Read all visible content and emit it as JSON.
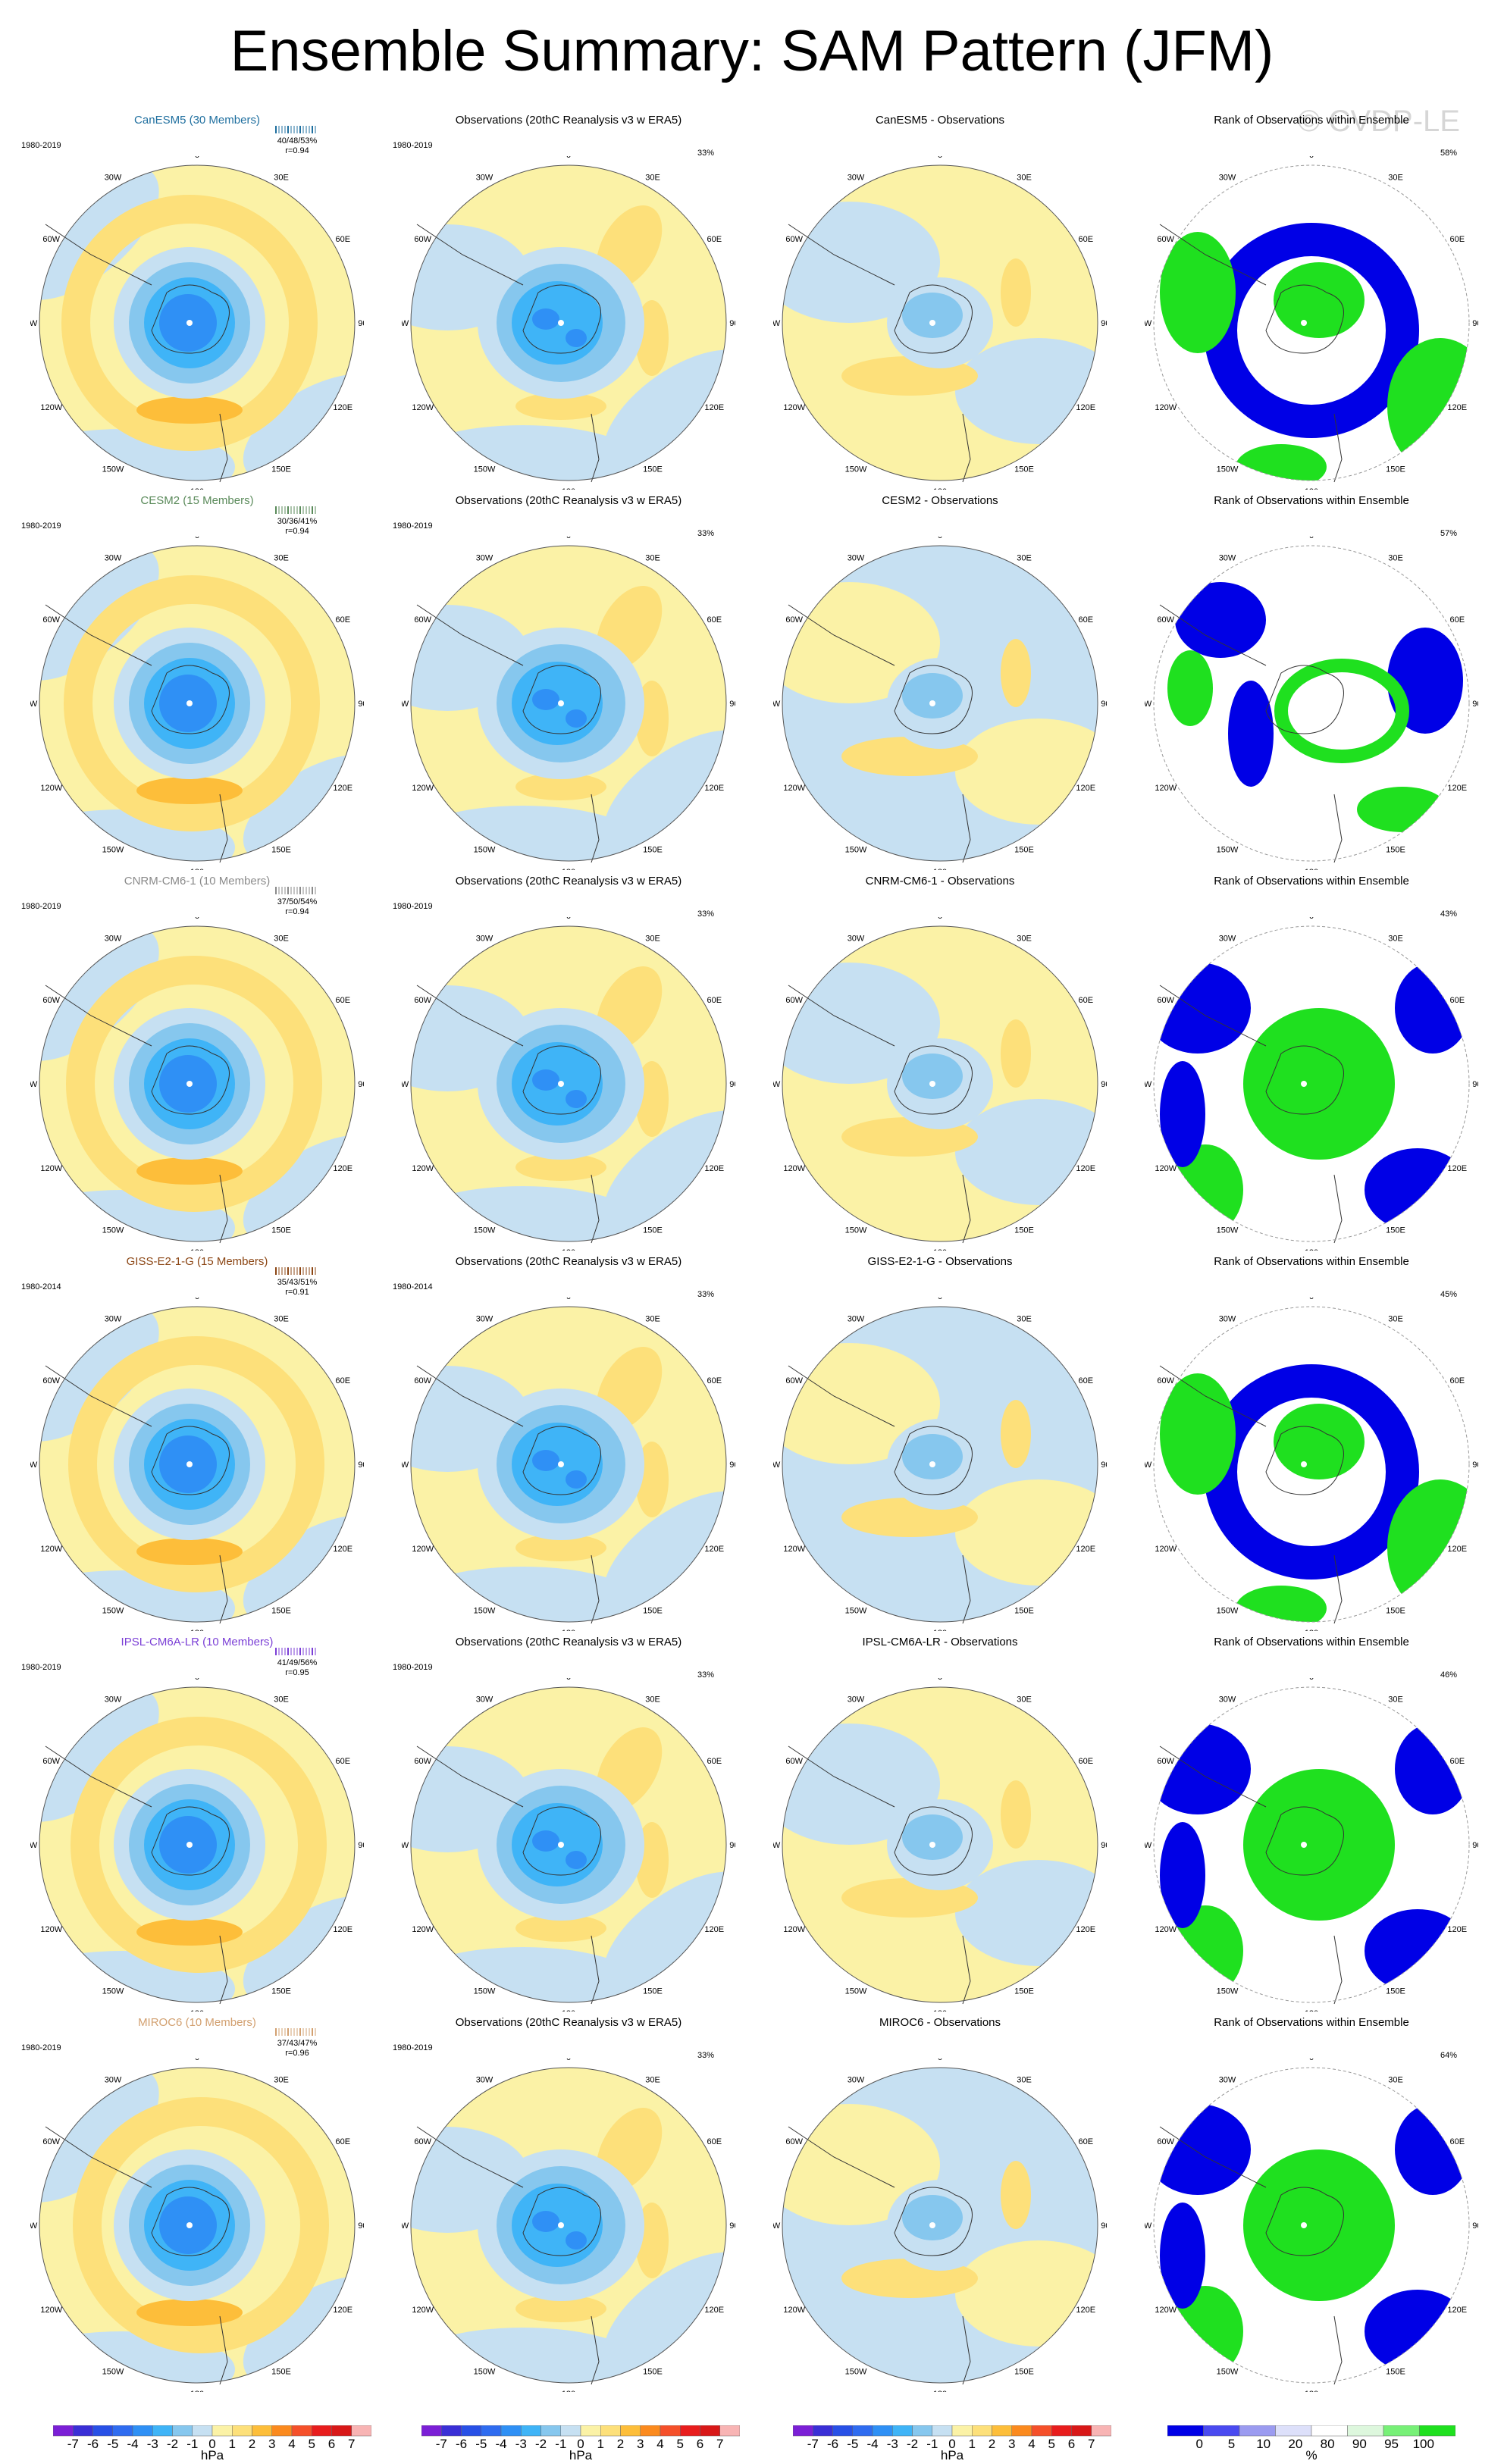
{
  "title": "Ensemble Summary: SAM Pattern (JFM)",
  "watermark": "© CVDP-LE",
  "obs_title": "Observations (20thC Reanalysis v3 w ERA5)",
  "rank_title": "Rank of Observations within Ensemble",
  "longitude_labels": [
    "0",
    "30E",
    "60E",
    "90E",
    "120E",
    "150E",
    "180",
    "150W",
    "120W",
    "90W",
    "60W",
    "30W"
  ],
  "rows": [
    {
      "model_title": "CanESM5 (30 Members)",
      "model_color": "#1f6f9f",
      "period": "1980-2019",
      "stats": "40/48/53%",
      "r": "r=0.94",
      "obs_pct": "33%",
      "diff_title": "CanESM5 - Observations",
      "rank_pct": "58%"
    },
    {
      "model_title": "CESM2 (15 Members)",
      "model_color": "#5a8a5a",
      "period": "1980-2019",
      "stats": "30/36/41%",
      "r": "r=0.94",
      "obs_pct": "33%",
      "diff_title": "CESM2 - Observations",
      "rank_pct": "57%"
    },
    {
      "model_title": "CNRM-CM6-1 (10 Members)",
      "model_color": "#8a8a8a",
      "period": "1980-2019",
      "stats": "37/50/54%",
      "r": "r=0.94",
      "obs_pct": "33%",
      "diff_title": "CNRM-CM6-1 - Observations",
      "rank_pct": "43%"
    },
    {
      "model_title": "GISS-E2-1-G (15 Members)",
      "model_color": "#8b4513",
      "period": "1980-2014",
      "stats": "35/43/51%",
      "r": "r=0.91",
      "obs_pct": "33%",
      "diff_title": "GISS-E2-1-G - Observations",
      "rank_pct": "45%"
    },
    {
      "model_title": "IPSL-CM6A-LR (10 Members)",
      "model_color": "#7b3fd6",
      "period": "1980-2019",
      "stats": "41/49/56%",
      "r": "r=0.95",
      "obs_pct": "33%",
      "diff_title": "IPSL-CM6A-LR - Observations",
      "rank_pct": "46%"
    },
    {
      "model_title": "MIROC6 (10 Members)",
      "model_color": "#d2a070",
      "period": "1980-2019",
      "stats": "37/43/47%",
      "r": "r=0.96",
      "obs_pct": "33%",
      "diff_title": "MIROC6 - Observations",
      "rank_pct": "64%"
    }
  ],
  "colorbar": {
    "unit": "hPa",
    "ticks": [
      "-7",
      "-6",
      "-5",
      "-4",
      "-3",
      "-2",
      "-1",
      "0",
      "1",
      "2",
      "3",
      "4",
      "5",
      "6",
      "7"
    ],
    "colors": [
      "#7b1fd6",
      "#3a2fd6",
      "#2850e6",
      "#2f6cf0",
      "#2f90f5",
      "#3fb4f7",
      "#86c7ee",
      "#c6e0f2",
      "#fbf2a6",
      "#fde07a",
      "#fdbe3a",
      "#fb8a1e",
      "#f5502a",
      "#e81d1d",
      "#d81818",
      "#f8b4b4"
    ]
  },
  "rank_colorbar": {
    "unit": "%",
    "ticks": [
      "0",
      "5",
      "10",
      "20",
      "80",
      "90",
      "95",
      "100"
    ],
    "colors": [
      "#0000e6",
      "#4a4af0",
      "#9b9bf0",
      "#dde0fa",
      "#ffffff",
      "#ddf7dd",
      "#77f077",
      "#1fe01f"
    ]
  }
}
